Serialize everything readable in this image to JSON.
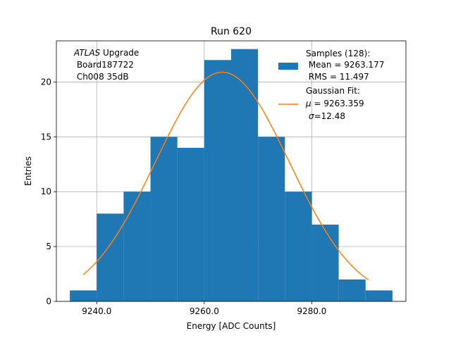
{
  "chart_data": {
    "type": "bar",
    "title": "Run 620",
    "xlabel": "Energy [ADC Counts]",
    "ylabel": "Entries",
    "xlim": [
      9232.5,
      9297.5
    ],
    "ylim": [
      0,
      23.75
    ],
    "grid": true,
    "bin_edges": [
      9235,
      9240,
      9245,
      9250,
      9255,
      9260,
      9265,
      9270,
      9275,
      9280,
      9285,
      9290,
      9295
    ],
    "values": [
      1,
      8,
      10,
      15,
      14,
      22,
      23,
      15,
      10,
      7,
      2,
      1
    ],
    "x_ticks": [
      9240,
      9260,
      9280
    ],
    "x_tick_labels": [
      "9240.0",
      "9260.0",
      "9280.0"
    ],
    "y_ticks": [
      0,
      5,
      10,
      15,
      20
    ],
    "y_tick_labels": [
      "0",
      "5",
      "10",
      "15",
      "20"
    ],
    "bar_color": "#1f77b4",
    "fit": {
      "type": "gaussian",
      "mu": 9263.359,
      "sigma": 12.48,
      "amplitude": 20.9,
      "x_range": [
        9237.5,
        9290.5
      ],
      "color": "#ff7f0e"
    },
    "annotation": {
      "label_italic": "ATLAS",
      "label_rest": " Upgrade",
      "line2": " Board187722",
      "line3": " Ch008 35dB"
    },
    "legend": {
      "position": "top-right",
      "hist_title": "Samples (128):",
      "hist_mean": " Mean = 9263.177",
      "hist_rms": " RMS = 11.497",
      "fit_title": "Gaussian Fit:",
      "fit_mu_symbol": "μ",
      "fit_mu_value": " = 9263.359",
      "fit_sigma_symbol": "σ",
      "fit_sigma_value": "=12.48"
    }
  }
}
